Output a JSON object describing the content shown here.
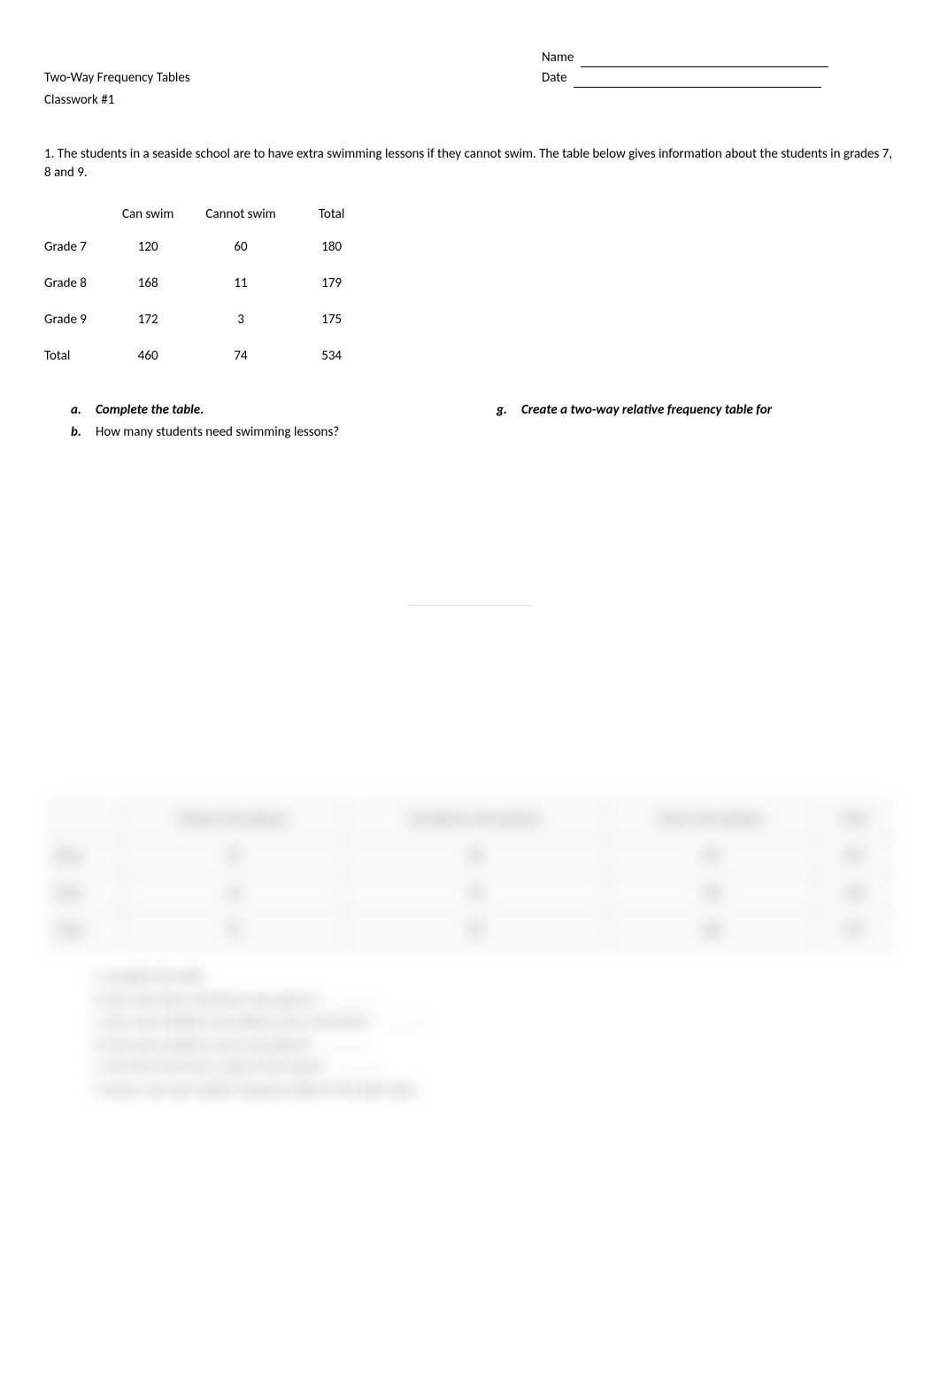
{
  "header": {
    "name_label": "Name",
    "date_label": "Date",
    "title_line1": "Two-Way Frequency Tables",
    "title_line2": "Classwork #1"
  },
  "intro": {
    "text": "1.  The students in a seaside school are to have extra swimming lessons if they cannot swim. The table below gives information about the students in grades 7, 8 and 9."
  },
  "table1": {
    "columns": [
      "",
      "Can swim",
      "Cannot swim",
      "Total"
    ],
    "rows": [
      [
        "Grade 7",
        "120",
        "60",
        "180"
      ],
      [
        "Grade 8",
        "168",
        "11",
        "179"
      ],
      [
        "Grade 9",
        "172",
        "3",
        "175"
      ],
      [
        "Total",
        "460",
        "74",
        "534"
      ]
    ]
  },
  "questions": {
    "a": {
      "marker": "a.",
      "text": "Complete the table."
    },
    "b": {
      "marker": "b.",
      "text": "How many students need swimming lessons?"
    },
    "g": {
      "marker": "g.",
      "text": "Create a two-way relative frequency table for"
    }
  },
  "blurred": {
    "table_columns": [
      "",
      "Always wear glasses",
      "Sometimes wear glasses",
      "Never wear glasses",
      "Total"
    ],
    "table_rows": [
      [
        "Boys",
        "40",
        "48",
        "161",
        "249"
      ],
      [
        "Girls",
        "36",
        "50",
        "144",
        "230"
      ],
      [
        "Total",
        "76",
        "98",
        "305",
        "479"
      ]
    ],
    "q_a": "a.  Complete the table.",
    "q_b": "b.  How many boys sometimes wear glasses?",
    "q_c": "c.  How many students wear glasses some of the time?",
    "q_d": "d.  How many students never wear glasses?",
    "q_e": "e.  Are there more boys or girls in this school?",
    "q_f": "f.  Create a two-way relative frequency table for the above data."
  }
}
